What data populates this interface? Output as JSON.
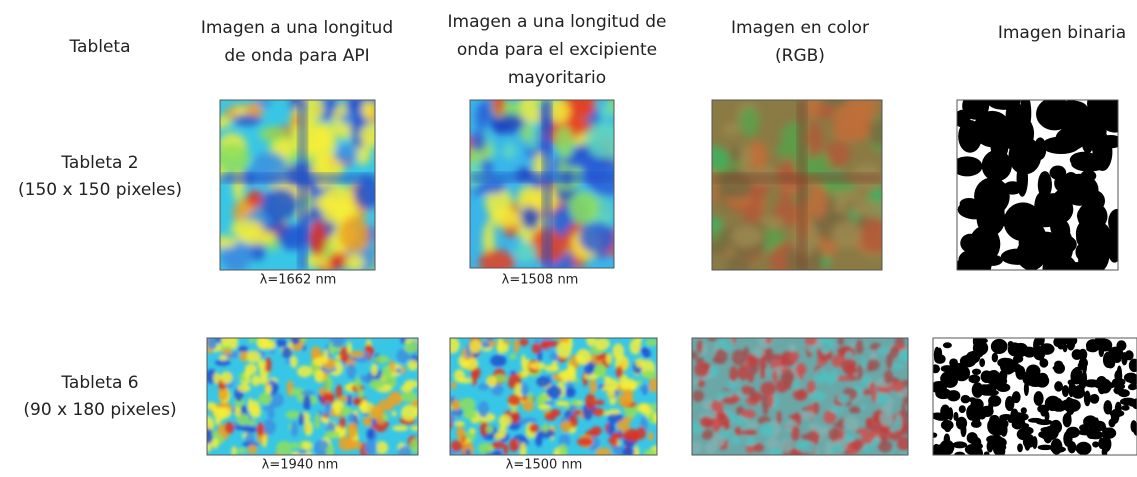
{
  "header": {
    "corner": "Tableta",
    "columns": [
      [
        "Imagen a una longitud",
        "de onda para API"
      ],
      [
        "Imagen a una longitud de",
        "onda para el excipiente",
        "mayoritario"
      ],
      [
        "Imagen en color",
        "(RGB)"
      ],
      [
        "Imagen binaria"
      ]
    ]
  },
  "rows": [
    {
      "label": "Tableta 2",
      "size": "(150 x 150 pixeles)",
      "captions": [
        "λ=1662 nm",
        "λ=1508 nm"
      ]
    },
    {
      "label": "Tableta 6",
      "size": "(90 x 180 pixeles)",
      "captions": [
        "λ=1940 nm",
        "λ=1500 nm"
      ]
    }
  ]
}
